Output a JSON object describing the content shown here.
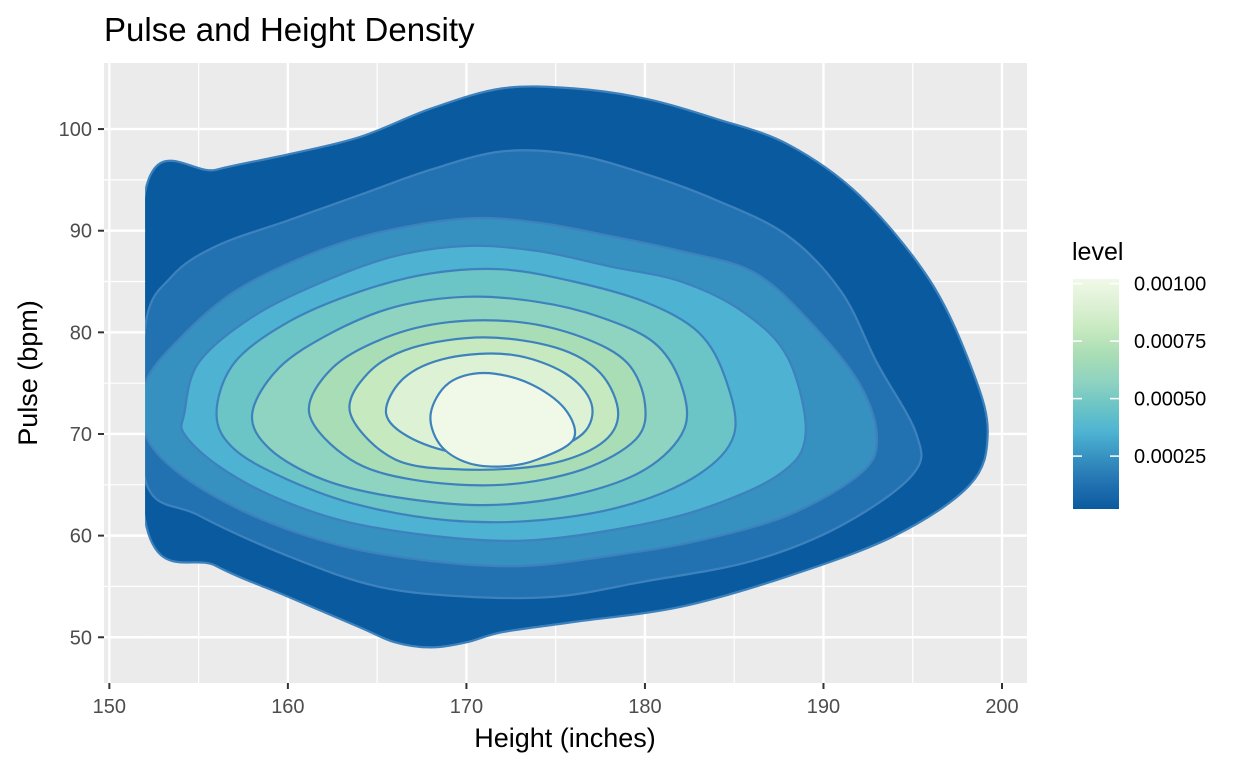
{
  "chart_data": {
    "type": "contour",
    "title": "Pulse and Height Density",
    "xlabel": "Height (inches)",
    "ylabel": "Pulse (bpm)",
    "xlim": [
      149.7,
      201.4
    ],
    "ylim": [
      45.5,
      106.5
    ],
    "x_ticks": [
      150,
      160,
      170,
      180,
      190,
      200
    ],
    "y_ticks": [
      50,
      60,
      70,
      80,
      90,
      100
    ],
    "grid": true,
    "peak": {
      "x": 171,
      "y": 71
    },
    "levels": [
      5e-05,
      0.00015,
      0.00025,
      0.00035,
      0.00045,
      0.00055,
      0.00065,
      0.00075,
      0.00085,
      0.00095
    ],
    "contours": [
      {
        "level": 5e-05,
        "fill": "#0a5a9f",
        "points": [
          [
            152,
            93.8
          ],
          [
            156,
            96
          ],
          [
            160,
            97.5
          ],
          [
            164,
            99.2
          ],
          [
            168,
            102
          ],
          [
            172,
            104
          ],
          [
            176,
            104
          ],
          [
            180,
            103
          ],
          [
            184,
            101
          ],
          [
            188,
            98.5
          ],
          [
            192,
            93.5
          ],
          [
            196,
            85
          ],
          [
            198.4,
            76
          ],
          [
            199.2,
            70
          ],
          [
            198.2,
            65
          ],
          [
            194,
            60
          ],
          [
            188,
            56
          ],
          [
            182,
            53
          ],
          [
            176,
            51.5
          ],
          [
            172,
            50.5
          ],
          [
            170,
            49.5
          ],
          [
            168,
            49
          ],
          [
            166,
            49.5
          ],
          [
            164,
            51
          ],
          [
            160,
            54
          ],
          [
            156,
            57
          ],
          [
            152,
            61.5
          ]
        ]
      },
      {
        "level": 0.00015,
        "fill": "#2272b2",
        "points": [
          [
            152,
            80.5
          ],
          [
            153.5,
            85.5
          ],
          [
            156,
            88.5
          ],
          [
            160,
            91
          ],
          [
            164,
            93.5
          ],
          [
            168,
            96
          ],
          [
            172,
            97.8
          ],
          [
            176,
            97.5
          ],
          [
            180,
            95.6
          ],
          [
            184,
            93
          ],
          [
            188,
            89.5
          ],
          [
            191,
            84
          ],
          [
            193,
            77
          ],
          [
            195.2,
            70
          ],
          [
            195,
            66
          ],
          [
            191,
            61
          ],
          [
            186,
            57.5
          ],
          [
            180,
            55.5
          ],
          [
            175,
            54
          ],
          [
            170,
            54
          ],
          [
            165,
            55
          ],
          [
            160,
            58
          ],
          [
            155,
            62
          ],
          [
            152,
            65.5
          ]
        ]
      },
      {
        "level": 0.00025,
        "fill": "#3690c0",
        "points": [
          [
            152,
            75
          ],
          [
            154,
            79.5
          ],
          [
            157,
            84
          ],
          [
            161,
            87.5
          ],
          [
            165,
            89.8
          ],
          [
            170,
            91.2
          ],
          [
            174,
            90.8
          ],
          [
            178,
            89.5
          ],
          [
            182,
            88
          ],
          [
            186,
            86
          ],
          [
            189,
            81.5
          ],
          [
            192,
            75
          ],
          [
            193,
            69.5
          ],
          [
            192,
            66
          ],
          [
            188,
            62
          ],
          [
            183,
            59.5
          ],
          [
            178,
            58
          ],
          [
            173,
            57
          ],
          [
            168,
            57.5
          ],
          [
            163,
            59
          ],
          [
            158,
            62
          ],
          [
            154,
            66
          ],
          [
            152,
            70
          ]
        ]
      },
      {
        "level": 0.00035,
        "fill": "#4eb3d3",
        "points": [
          [
            154.2,
            72
          ],
          [
            155,
            77
          ],
          [
            158,
            81.5
          ],
          [
            162,
            85
          ],
          [
            166,
            87.5
          ],
          [
            170,
            88.5
          ],
          [
            174,
            88
          ],
          [
            178,
            86.5
          ],
          [
            182,
            85
          ],
          [
            185.5,
            82
          ],
          [
            188,
            77.5
          ],
          [
            189,
            70
          ],
          [
            187.5,
            66
          ],
          [
            183,
            62.5
          ],
          [
            178,
            60.5
          ],
          [
            173,
            59.5
          ],
          [
            168,
            60
          ],
          [
            163,
            61.5
          ],
          [
            159,
            64
          ],
          [
            156,
            67
          ],
          [
            154.2,
            70
          ]
        ]
      },
      {
        "level": 0.00045,
        "fill": "#6bc4c5",
        "points": [
          [
            156,
            72
          ],
          [
            157,
            77
          ],
          [
            160,
            81
          ],
          [
            164,
            84
          ],
          [
            168,
            85.8
          ],
          [
            172,
            86.2
          ],
          [
            176,
            85
          ],
          [
            180,
            83
          ],
          [
            183,
            80
          ],
          [
            184.5,
            75.5
          ],
          [
            185,
            70
          ],
          [
            183,
            66
          ],
          [
            179,
            63
          ],
          [
            174,
            61.5
          ],
          [
            169,
            61.5
          ],
          [
            164,
            63
          ],
          [
            160,
            65.5
          ],
          [
            157,
            68.5
          ]
        ]
      },
      {
        "level": 0.00055,
        "fill": "#8fd3c1",
        "points": [
          [
            158,
            72
          ],
          [
            159.5,
            76.5
          ],
          [
            162.5,
            80
          ],
          [
            166,
            82.5
          ],
          [
            170,
            83.5
          ],
          [
            174,
            83
          ],
          [
            177.5,
            81.5
          ],
          [
            180.5,
            79
          ],
          [
            182,
            75
          ],
          [
            182.2,
            70.5
          ],
          [
            180,
            66.5
          ],
          [
            176,
            64
          ],
          [
            171,
            63
          ],
          [
            166,
            63.8
          ],
          [
            162,
            65.5
          ],
          [
            159,
            68.5
          ]
        ]
      },
      {
        "level": 0.00065,
        "fill": "#a8ddb5",
        "points": [
          [
            161.2,
            72
          ],
          [
            162.5,
            76.5
          ],
          [
            165.5,
            79.5
          ],
          [
            169,
            81
          ],
          [
            173,
            81
          ],
          [
            176.5,
            79.5
          ],
          [
            179,
            77
          ],
          [
            180,
            73
          ],
          [
            179.5,
            69.5
          ],
          [
            176.5,
            66.5
          ],
          [
            172,
            65
          ],
          [
            167,
            65.5
          ],
          [
            163.5,
            67.5
          ]
        ]
      },
      {
        "level": 0.00075,
        "fill": "#c6e9bf",
        "points": [
          [
            163.5,
            72
          ],
          [
            164.5,
            76
          ],
          [
            167,
            78.5
          ],
          [
            171,
            79.5
          ],
          [
            175,
            78.5
          ],
          [
            177.5,
            76
          ],
          [
            178.5,
            72
          ],
          [
            177.5,
            69
          ],
          [
            174.5,
            67
          ],
          [
            170,
            66.5
          ],
          [
            166,
            67.5
          ]
        ]
      },
      {
        "level": 0.00085,
        "fill": "#ddf1d5",
        "points": [
          [
            165.5,
            72
          ],
          [
            166.5,
            75.5
          ],
          [
            169,
            77.5
          ],
          [
            172.5,
            77.8
          ],
          [
            175.5,
            76
          ],
          [
            177,
            73
          ],
          [
            176.5,
            70
          ],
          [
            174,
            68.2
          ],
          [
            170,
            68
          ],
          [
            167,
            69.5
          ]
        ]
      },
      {
        "level": 0.00095,
        "fill": "#f0f9e8",
        "points": [
          [
            168,
            72
          ],
          [
            169,
            75
          ],
          [
            171,
            76
          ],
          [
            173.5,
            75
          ],
          [
            175.5,
            72.5
          ],
          [
            176,
            69.5
          ],
          [
            174,
            67.5
          ],
          [
            172,
            66.8
          ],
          [
            170,
            67.2
          ],
          [
            168.5,
            69
          ]
        ]
      }
    ],
    "line_color": "#3e82bd",
    "legend": {
      "title": "level",
      "placement": "right",
      "labels": [
        "0.00100",
        "0.00075",
        "0.00050",
        "0.00025"
      ],
      "values": [
        0.001,
        0.00075,
        0.0005,
        0.00025
      ],
      "range": [
        2e-05,
        0.00102
      ],
      "gradient": [
        "#0a5a9f",
        "#2272b2",
        "#3690c0",
        "#4eb3d3",
        "#6bc4c5",
        "#8fd3c1",
        "#a8ddb5",
        "#c6e9bf",
        "#ddf1d5",
        "#f0f9e8"
      ]
    },
    "panel_background": "#ebebeb",
    "grid_color": "#ffffff"
  }
}
